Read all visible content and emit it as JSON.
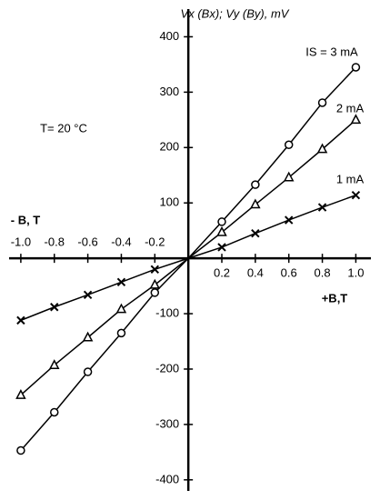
{
  "chart_data": {
    "type": "line",
    "y_label": "Vx (Bx);  Vy (By), mV",
    "x_label_pos": "+B,T",
    "x_label_neg": "- B, T",
    "annotation": "T= 20 °C",
    "x": [
      -1.0,
      -0.8,
      -0.6,
      -0.4,
      -0.2,
      0,
      0.2,
      0.4,
      0.6,
      0.8,
      1.0
    ],
    "series": [
      {
        "name": "IS = 3 mA",
        "color": "#000000",
        "marker": "circle",
        "values": [
          -347,
          -278,
          -205,
          -135,
          -62,
          0,
          66,
          133,
          205,
          281,
          345
        ]
      },
      {
        "name": "2 mA",
        "color": "#000000",
        "marker": "triangle",
        "values": [
          -247,
          -193,
          -143,
          -92,
          -48,
          0,
          47,
          97,
          146,
          197,
          250
        ]
      },
      {
        "name": "1 mA",
        "color": "#000000",
        "marker": "cross",
        "values": [
          -112,
          -88,
          -66,
          -43,
          -20,
          0,
          20,
          45,
          69,
          92,
          114
        ]
      }
    ],
    "xlim": [
      -1.07,
      1.09
    ],
    "ylim": [
      -420,
      450
    ],
    "xticks": [
      {
        "value": -1.0,
        "label": "-1.0"
      },
      -0.8,
      -0.6,
      -0.4,
      -0.2,
      0.2,
      0.4,
      0.6,
      0.8,
      {
        "value": 1.0,
        "label": "1.0"
      }
    ],
    "yticks": [
      -400,
      -300,
      -200,
      -100,
      100,
      200,
      300,
      400
    ]
  }
}
